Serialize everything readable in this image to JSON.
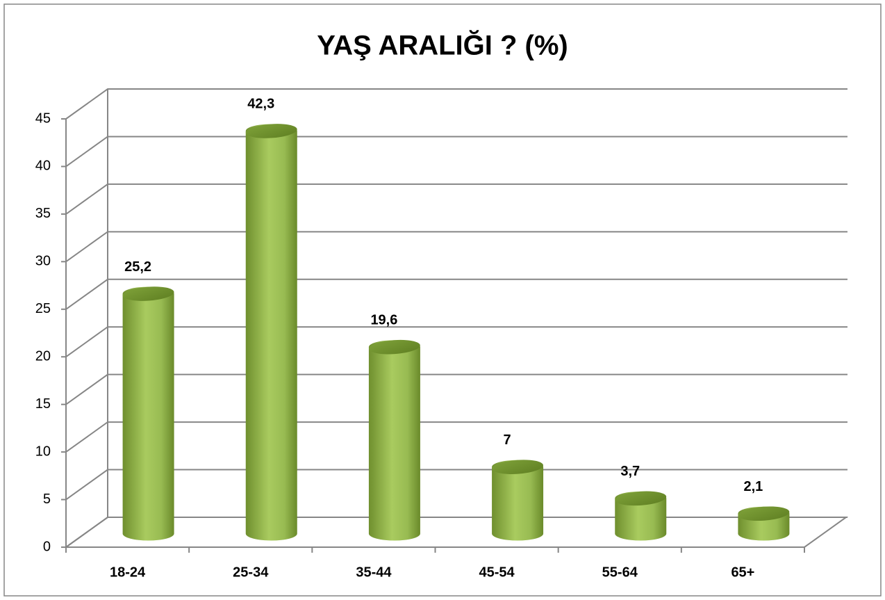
{
  "chart_data": {
    "type": "bar3d",
    "title": "YAŞ ARALIĞI ? (%)",
    "categories": [
      "18-24",
      "25-34",
      "35-44",
      "45-54",
      "55-64",
      "65+"
    ],
    "values": [
      25.2,
      42.3,
      19.6,
      7,
      3.7,
      2.1
    ],
    "value_labels": [
      "25,2",
      "42,3",
      "19,6",
      "7",
      "3,7",
      "2,1"
    ],
    "color": "#9bbb59",
    "ylim": [
      0,
      45
    ],
    "yticks": [
      0,
      5,
      10,
      15,
      20,
      25,
      30,
      35,
      40,
      45
    ],
    "grid": true
  }
}
